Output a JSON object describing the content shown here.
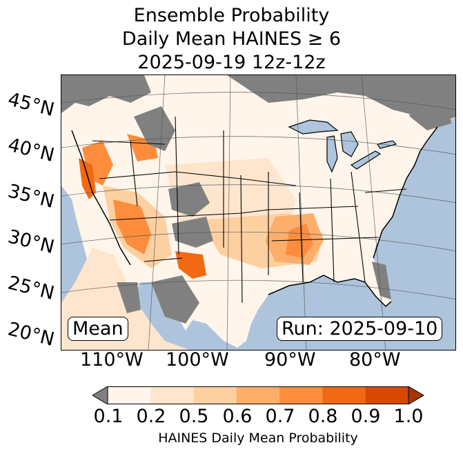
{
  "title": {
    "line1": "Ensemble Probability",
    "line2": "Daily Mean HAINES ≥ 6",
    "line3": "2025-09-19 12z-12z"
  },
  "map": {
    "lat_labels": [
      "45°N",
      "40°N",
      "35°N",
      "30°N",
      "25°N",
      "20°N"
    ],
    "lon_labels": [
      "110°W",
      "100°W",
      "90°W",
      "80°W"
    ],
    "stat_box": "Mean",
    "run_box": "Run: 2025-09-10",
    "colors": {
      "ocean": "#aec4dc",
      "lakes": "#aec4dc",
      "no_data": "#808080"
    }
  },
  "colorbar": {
    "ticks": [
      "0.1",
      "0.2",
      "0.5",
      "0.6",
      "0.7",
      "0.8",
      "0.9",
      "1.0"
    ],
    "colors": [
      "#fff5eb",
      "#fee6ce",
      "#fdd0a2",
      "#fdae6b",
      "#fd8d3c",
      "#f16913",
      "#d94801"
    ],
    "under_color": "#808080",
    "over_color": "#a63603",
    "label": "HAINES Daily Mean Probability"
  }
}
